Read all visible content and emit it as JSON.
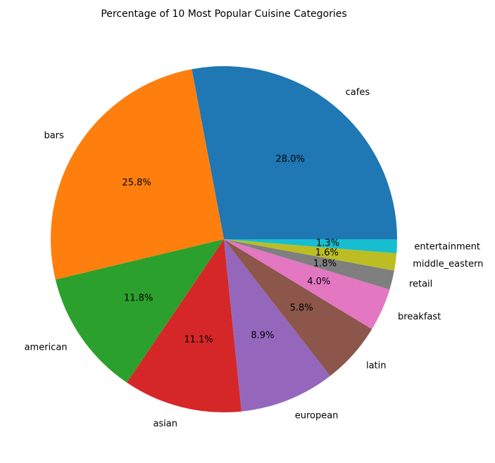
{
  "chart_data": {
    "type": "pie",
    "title": "Percentage of 10 Most Popular Cuisine Categories",
    "start_angle_deg": 0,
    "direction": "counterclockwise",
    "slices": [
      {
        "label": "cafes",
        "value": 28.0,
        "pct_text": "28.0%",
        "color": "#1f77b4"
      },
      {
        "label": "bars",
        "value": 25.8,
        "pct_text": "25.8%",
        "color": "#ff7f0e"
      },
      {
        "label": "american",
        "value": 11.8,
        "pct_text": "11.8%",
        "color": "#2ca02c"
      },
      {
        "label": "asian",
        "value": 11.1,
        "pct_text": "11.1%",
        "color": "#d62728"
      },
      {
        "label": "european",
        "value": 8.9,
        "pct_text": "8.9%",
        "color": "#9467bd"
      },
      {
        "label": "latin",
        "value": 5.8,
        "pct_text": "5.8%",
        "color": "#8c564b"
      },
      {
        "label": "breakfast",
        "value": 4.0,
        "pct_text": "4.0%",
        "color": "#e377c2"
      },
      {
        "label": "retail",
        "value": 1.8,
        "pct_text": "1.8%",
        "color": "#7f7f7f"
      },
      {
        "label": "middle_eastern",
        "value": 1.6,
        "pct_text": "1.6%",
        "color": "#bcbd22"
      },
      {
        "label": "entertainment",
        "value": 1.3,
        "pct_text": "1.3%",
        "color": "#17becf"
      }
    ]
  }
}
